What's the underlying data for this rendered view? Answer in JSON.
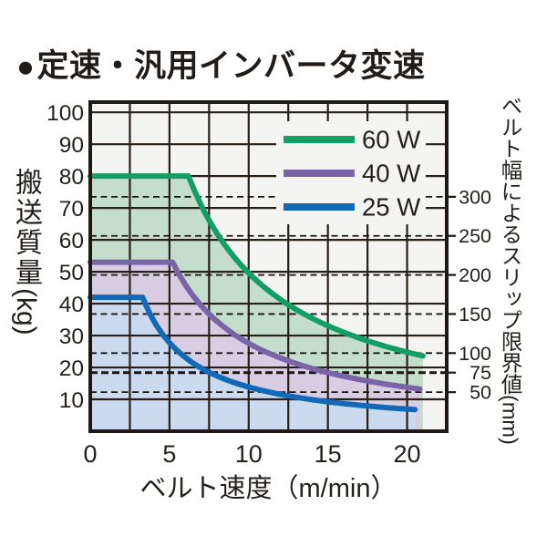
{
  "title": {
    "bullet": "●",
    "text": "定速・汎用インバータ変速"
  },
  "chart_data": {
    "type": "line",
    "title": "定速・汎用インバータ変速",
    "x_axis": {
      "label": "ベルト速度（m/min）",
      "ticks": [
        0,
        5,
        10,
        15,
        20
      ],
      "range": [
        0,
        22.5
      ],
      "grid_step": 2.5
    },
    "y_axis": {
      "label": "搬送質量",
      "unit": "(kg)",
      "ticks": [
        10,
        20,
        30,
        40,
        50,
        60,
        70,
        80,
        90,
        100
      ],
      "range": [
        0,
        103.2
      ],
      "grid_step": 10
    },
    "right_axis": {
      "label": "ベルト幅によるスリップ限界値",
      "unit": "(mm)",
      "ticks": [
        300,
        250,
        200,
        150,
        100,
        75,
        50
      ],
      "kg_per_mm": 0.245,
      "emphasized_tick": 75,
      "style": "dashed-horizontal-lines"
    },
    "grid": true,
    "legend": {
      "position": "top-right",
      "entries": [
        "60 W",
        "40 W",
        "25 W"
      ]
    },
    "series": [
      {
        "name": "60 W",
        "power_w": 60,
        "color": "#139e63",
        "fill": "#c5decb",
        "max_load_kg": 80,
        "knee_speed": 6.2,
        "end_speed": 21.0,
        "points": [
          [
            0,
            80
          ],
          [
            6.2,
            80
          ],
          [
            8,
            62.0
          ],
          [
            10,
            49.6
          ],
          [
            12,
            41.3
          ],
          [
            15,
            33.1
          ],
          [
            18,
            27.6
          ],
          [
            20,
            24.8
          ],
          [
            21,
            23.6
          ]
        ]
      },
      {
        "name": "40 W",
        "power_w": 40,
        "color": "#7a63a6",
        "fill": "#d7cee4",
        "max_load_kg": 53,
        "knee_speed": 5.2,
        "end_speed": 20.8,
        "points": [
          [
            0,
            53
          ],
          [
            5.2,
            53
          ],
          [
            8,
            34.5
          ],
          [
            10,
            27.6
          ],
          [
            12,
            23.0
          ],
          [
            15,
            18.4
          ],
          [
            18,
            15.3
          ],
          [
            20,
            13.8
          ],
          [
            20.8,
            13.3
          ]
        ]
      },
      {
        "name": "25 W",
        "power_w": 25,
        "color": "#1269b8",
        "fill": "#cbdaee",
        "max_load_kg": 42,
        "knee_speed": 3.3,
        "end_speed": 20.5,
        "points": [
          [
            0,
            42
          ],
          [
            3.3,
            42
          ],
          [
            5,
            27.7
          ],
          [
            8,
            17.3
          ],
          [
            10,
            13.9
          ],
          [
            12,
            11.6
          ],
          [
            15,
            9.2
          ],
          [
            18,
            7.7
          ],
          [
            20,
            6.9
          ],
          [
            20.5,
            6.8
          ]
        ]
      }
    ]
  },
  "colors": {
    "page_bg": "#ffffff",
    "plot_bg": "#f4f4f2",
    "grid": "#272019",
    "axis": "#1f1915",
    "dashed": "#1a1511",
    "text": "#241f1b"
  }
}
